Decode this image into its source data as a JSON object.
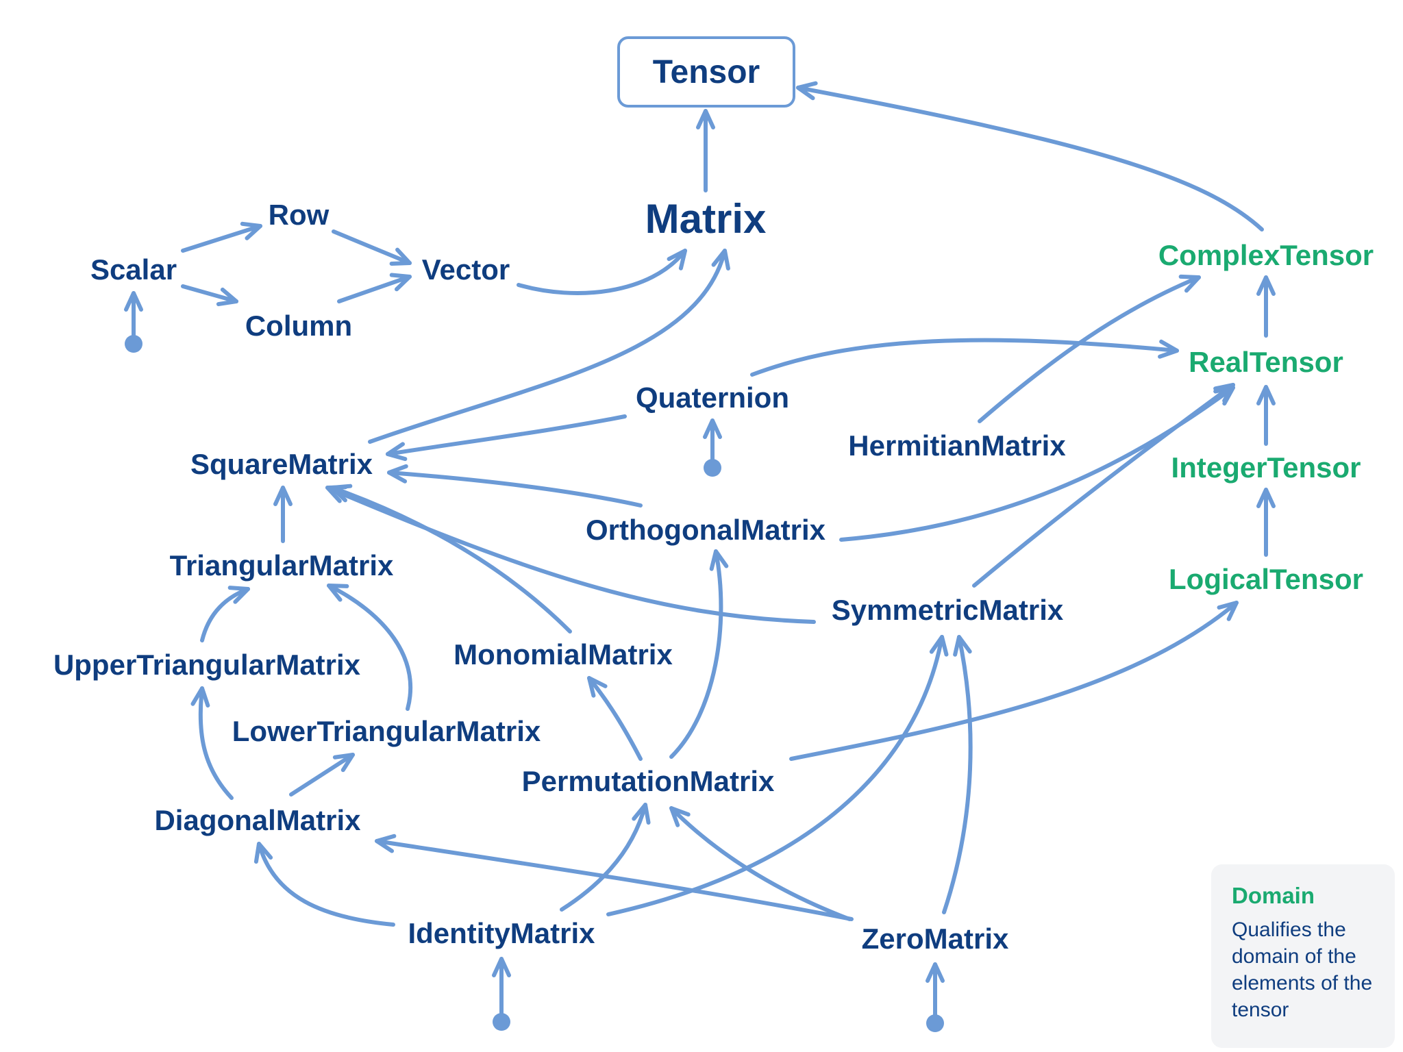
{
  "nodes": {
    "tensor": "Tensor",
    "matrix": "Matrix",
    "row": "Row",
    "scalar": "Scalar",
    "column": "Column",
    "vector": "Vector",
    "complex_tensor": "ComplexTensor",
    "real_tensor": "RealTensor",
    "integer_tensor": "IntegerTensor",
    "logical_tensor": "LogicalTensor",
    "quaternion": "Quaternion",
    "hermitian_matrix": "HermitianMatrix",
    "square_matrix": "SquareMatrix",
    "orthogonal_matrix": "OrthogonalMatrix",
    "triangular_matrix": "TriangularMatrix",
    "symmetric_matrix": "SymmetricMatrix",
    "upper_triangular_matrix": "UpperTriangularMatrix",
    "monomial_matrix": "MonomialMatrix",
    "lower_triangular_matrix": "LowerTriangularMatrix",
    "permutation_matrix": "PermutationMatrix",
    "diagonal_matrix": "DiagonalMatrix",
    "identity_matrix": "IdentityMatrix",
    "zero_matrix": "ZeroMatrix"
  },
  "legend": {
    "title": "Domain",
    "description": "Qualifies the domain of the elements of the tensor"
  },
  "colors": {
    "node_text": "#0f3d7f",
    "domain_text": "#1aaa70",
    "edge": "#6b9ad6",
    "legend_background": "#f3f4f6"
  }
}
